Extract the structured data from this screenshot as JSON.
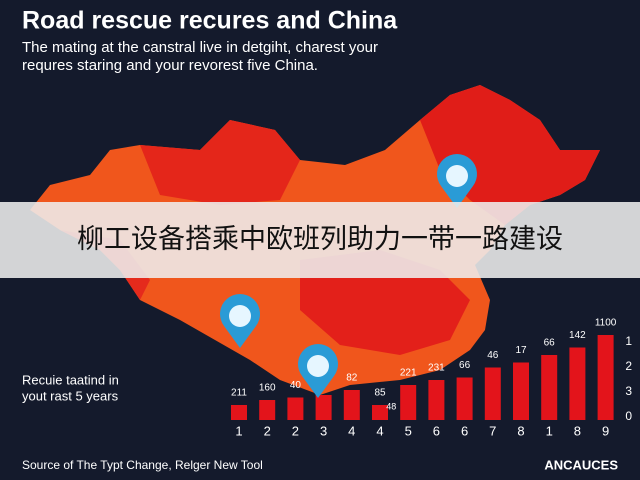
{
  "chart_data": {
    "type": "bar",
    "title": "Road rescue recures and China",
    "subtitle": [
      "The mating at the canstral live in detgiht, charest your",
      "requres staring and your revorest five China."
    ],
    "side_note": [
      "Recuie taatind in",
      "yout rast 5 years"
    ],
    "categories": [
      "1",
      "2",
      "2",
      "3",
      "4",
      "4",
      "5",
      "6",
      "6",
      "7",
      "8",
      "1",
      "8",
      "9"
    ],
    "values": [
      0.6,
      0.8,
      0.9,
      1.0,
      1.2,
      0.6,
      1.4,
      1.6,
      1.7,
      2.1,
      2.3,
      2.6,
      2.9,
      3.4
    ],
    "bar_annotations": [
      "211",
      "160",
      "40",
      null,
      "82",
      "85",
      "221",
      "231",
      "66",
      "46",
      "17",
      "66",
      "142",
      "1100"
    ],
    "extra_annotation": "48",
    "side_labels": [
      "1",
      "2",
      "3",
      "0"
    ],
    "ylim": [
      0,
      4
    ],
    "color": "#e3141b",
    "source": "Source of The Typt Change, Relger New Tool",
    "brand": "ANCAUCES"
  },
  "banner": "柳工设备搭乘中欧班列助力一带一路建设"
}
